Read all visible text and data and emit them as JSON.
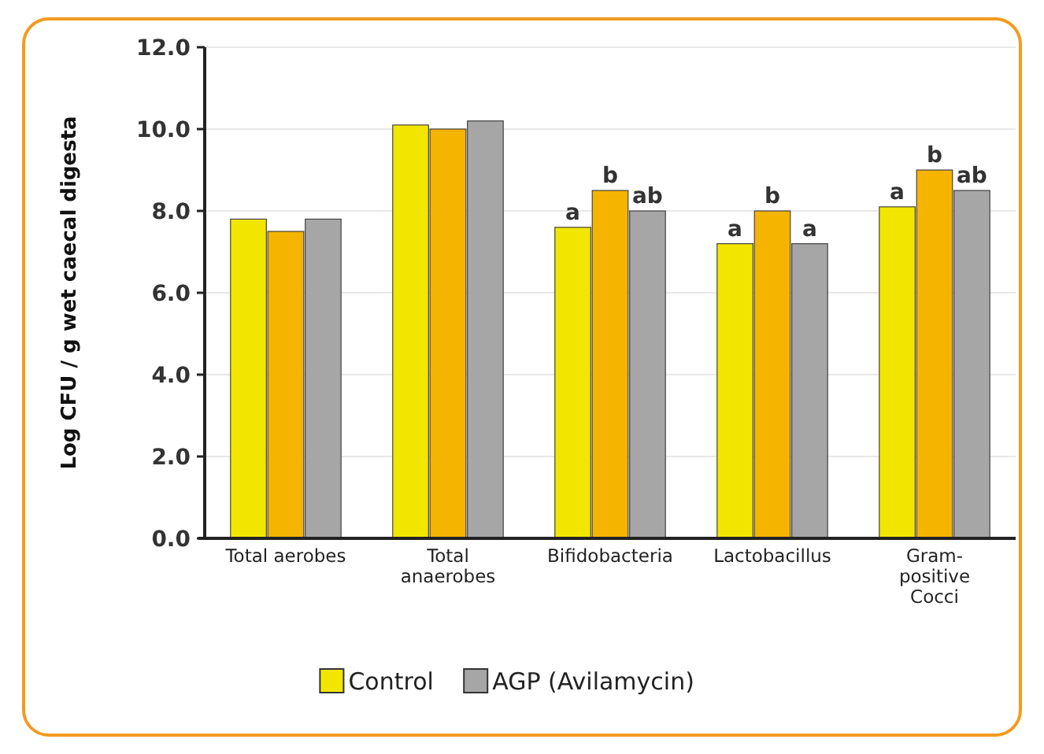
{
  "chart_data": {
    "type": "bar",
    "ylabel": "Log CFU / g wet caecal digesta",
    "categories": [
      "Total aerobes",
      "Total anaerobes",
      "Bifidobacteria",
      "Lactobacillus",
      "Gram-positive Cocci"
    ],
    "series": [
      {
        "name": "Control",
        "color": "#f2e600",
        "values": [
          7.8,
          10.1,
          7.6,
          7.2,
          8.1
        ],
        "value_labels": [
          null,
          null,
          "a",
          "a",
          "a"
        ]
      },
      {
        "color": "#f5b400",
        "values": [
          7.5,
          10.0,
          8.5,
          8.0,
          9.0
        ],
        "value_labels": [
          null,
          null,
          "b",
          "b",
          "b"
        ]
      },
      {
        "name": "AGP (Avilamycin)",
        "color": "#a6a6a6",
        "values": [
          7.8,
          10.2,
          8.0,
          7.2,
          8.5
        ],
        "value_labels": [
          null,
          null,
          "ab",
          "a",
          "ab"
        ]
      }
    ],
    "ylim": [
      0,
      12
    ],
    "yticks": [
      {
        "value": 0,
        "label": "0.0"
      },
      {
        "value": 2,
        "label": "2.0"
      },
      {
        "value": 4,
        "label": "4.0"
      },
      {
        "value": 6,
        "label": "6.0"
      },
      {
        "value": 8,
        "label": "8.0"
      },
      {
        "value": 10,
        "label": "10.0"
      },
      {
        "value": 12,
        "label": "12.0"
      }
    ],
    "grid": "y",
    "legend": "bottom"
  }
}
